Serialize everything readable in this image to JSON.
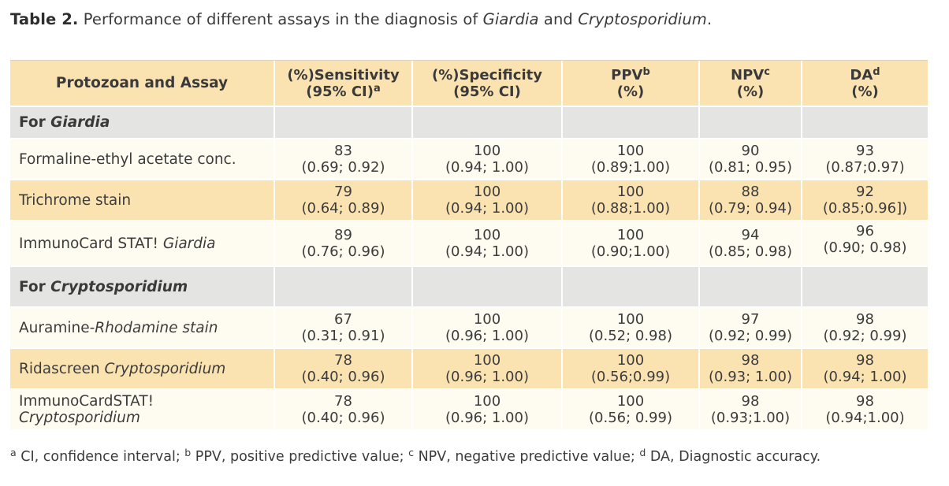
{
  "caption": {
    "label": "Table 2.",
    "text_before": "Performance of different assays in the diagnosis of",
    "giardia": "Giardia",
    "and": "and",
    "crypto": "Cryptosporidium",
    "period": "."
  },
  "header": {
    "col0": "Protozoan and Assay",
    "col1_line1": "(%)Sensitivity",
    "col1_line2": "(95% CI)",
    "col1_sup": "a",
    "col2_line1": "(%)Specificity",
    "col2_line2": "(95% CI)",
    "col3_line1": "PPV",
    "col3_sup": "b",
    "col3_line2": "(%)",
    "col4_line1": "NPV",
    "col4_sup": "c",
    "col4_line2": "(%)",
    "col5_line1": "DA",
    "col5_sup": "d",
    "col5_line2": "(%)"
  },
  "sections": [
    {
      "label_prefix": "For ",
      "label_italic": "Giardia",
      "rows": [
        {
          "name": "Formaline-ethyl acetate conc.",
          "name_italic": "",
          "cells": [
            [
              "83",
              "(0.69; 0.92)"
            ],
            [
              "100",
              "(0.94; 1.00)"
            ],
            [
              "100",
              "(0.89;1.00)"
            ],
            [
              "90",
              "(0.81; 0.95)"
            ],
            [
              "93",
              "(0.87;0.97)"
            ]
          ]
        },
        {
          "name": "Trichrome stain",
          "name_italic": "",
          "cells": [
            [
              "79",
              "(0.64; 0.89)"
            ],
            [
              "100",
              "(0.94; 1.00)"
            ],
            [
              "100",
              "(0.88;1.00)"
            ],
            [
              "88",
              "(0.79; 0.94)"
            ],
            [
              "92",
              "(0.85;0.96])"
            ]
          ]
        },
        {
          "name": "ImmunoCard STAT! ",
          "name_italic": "Giardia",
          "cells": [
            [
              "89",
              "(0.76; 0.96)"
            ],
            [
              "100",
              "(0.94; 1.00)"
            ],
            [
              "100",
              "(0.90;1.00)"
            ],
            [
              "94",
              "(0.85; 0.98)"
            ],
            [
              "96",
              "(0.90; 0.98)"
            ]
          ]
        }
      ]
    },
    {
      "label_prefix": "For ",
      "label_italic": "Cryptosporidium",
      "rows": [
        {
          "name": "Auramine-",
          "name_italic": "Rhodamine stain",
          "cells": [
            [
              "67",
              "(0.31; 0.91)"
            ],
            [
              "100",
              "(0.96; 1.00)"
            ],
            [
              "100",
              "(0.52; 0.98)"
            ],
            [
              "97",
              "(0.92; 0.99)"
            ],
            [
              "98",
              "(0.92; 0.99)"
            ]
          ]
        },
        {
          "name": "Ridascreen ",
          "name_italic": "Cryptosporidium",
          "cells": [
            [
              "78",
              "(0.40; 0.96)"
            ],
            [
              "100",
              "(0.96; 1.00)"
            ],
            [
              "100",
              "(0.56;0.99)"
            ],
            [
              "98",
              "(0.93; 1.00)"
            ],
            [
              "98",
              "(0.94; 1.00)"
            ]
          ]
        },
        {
          "name": "ImmunoCardSTAT! ",
          "name_italic": "Cryptosporidium",
          "cells": [
            [
              "78",
              "(0.40; 0.96)"
            ],
            [
              "100",
              "(0.96; 1.00)"
            ],
            [
              "100",
              "(0.56; 0.99)"
            ],
            [
              "98",
              "(0.93;1.00)"
            ],
            [
              "98",
              "(0.94;1.00)"
            ]
          ]
        }
      ]
    }
  ],
  "footnote": {
    "a_mark": "a",
    "a_text": " CI, confidence interval; ",
    "b_mark": "b",
    "b_text": " PPV, positive predictive value; ",
    "c_mark": "c",
    "c_text": " NPV, negative predictive value; ",
    "d_mark": "d",
    "d_text": " DA, Diagnostic accuracy."
  },
  "colors": {
    "header_bg": "#fbe3b1",
    "section_bg": "#e4e4e3",
    "row_light": "#fefbf0",
    "row_dark": "#fbe3b1"
  }
}
